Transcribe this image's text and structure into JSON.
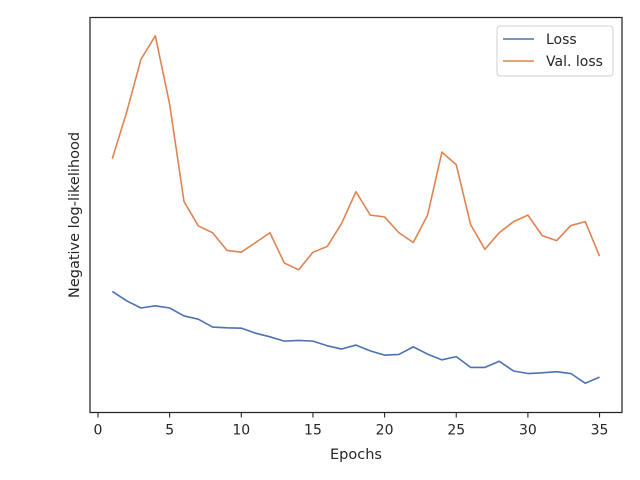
{
  "chart_data": {
    "type": "line",
    "title": "",
    "xlabel": "Epochs",
    "ylabel": "Negative log-likelihood",
    "xlim": [
      -0.6,
      36.6
    ],
    "ylim": [
      0.0,
      1.0
    ],
    "y_ticks_shown": false,
    "x_ticks": [
      0,
      5,
      10,
      15,
      20,
      25,
      30,
      35
    ],
    "grid": false,
    "legend_position": "top-right",
    "x": [
      1,
      2,
      3,
      4,
      5,
      6,
      7,
      8,
      9,
      10,
      11,
      12,
      13,
      14,
      15,
      16,
      17,
      18,
      19,
      20,
      21,
      22,
      23,
      24,
      25,
      26,
      27,
      28,
      29,
      30,
      31,
      32,
      33,
      34,
      35
    ],
    "series": [
      {
        "name": "Loss",
        "color": "#4c72b0",
        "values": [
          0.296,
          0.27,
          0.25,
          0.256,
          0.25,
          0.228,
          0.219,
          0.197,
          0.195,
          0.194,
          0.18,
          0.17,
          0.158,
          0.16,
          0.158,
          0.145,
          0.136,
          0.147,
          0.131,
          0.119,
          0.121,
          0.142,
          0.122,
          0.106,
          0.115,
          0.085,
          0.085,
          0.102,
          0.075,
          0.068,
          0.07,
          0.073,
          0.068,
          0.041,
          0.058
        ]
      },
      {
        "name": "Val. loss",
        "color": "#dd8452",
        "values": [
          0.665,
          0.794,
          0.941,
          1.006,
          0.816,
          0.546,
          0.478,
          0.459,
          0.41,
          0.405,
          0.432,
          0.459,
          0.375,
          0.356,
          0.405,
          0.421,
          0.485,
          0.573,
          0.508,
          0.503,
          0.459,
          0.432,
          0.508,
          0.683,
          0.648,
          0.482,
          0.413,
          0.459,
          0.49,
          0.508,
          0.451,
          0.437,
          0.479,
          0.49,
          0.394
        ]
      }
    ]
  }
}
